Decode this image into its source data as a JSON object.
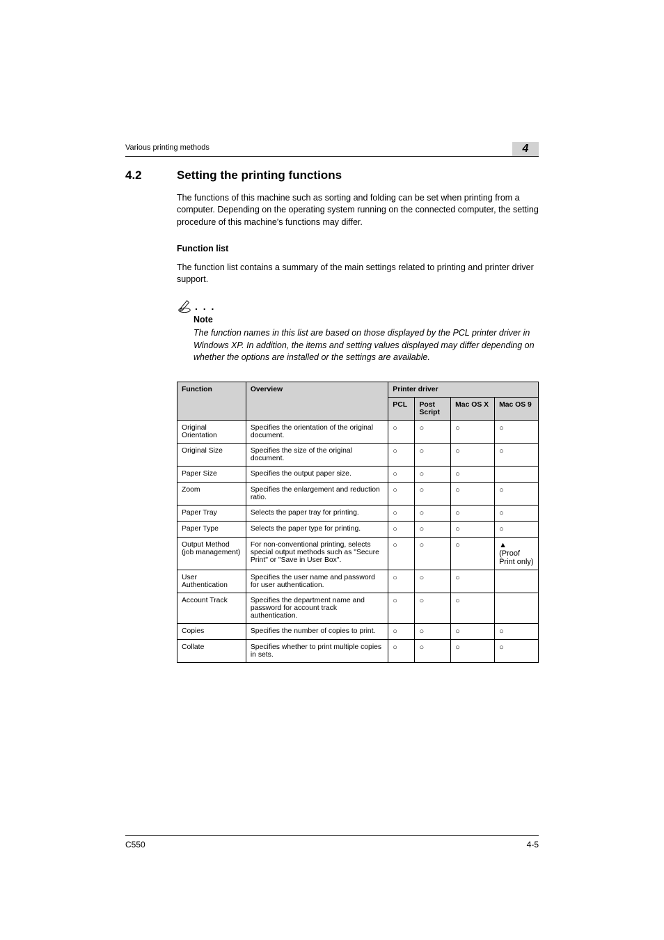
{
  "header": {
    "running": "Various printing methods",
    "chapter_number": "4"
  },
  "section": {
    "number": "4.2",
    "title": "Setting the printing functions",
    "intro": "The functions of this machine such as sorting and folding can be set when printing from a computer. Depending on the operating system running on the connected computer, the setting procedure of this machine's functions may differ."
  },
  "function_list": {
    "heading": "Function list",
    "intro": "The function list contains a summary of the main settings related to printing and printer driver support."
  },
  "note": {
    "label": "Note",
    "text": "The function names in this list are based on those displayed by the PCL printer driver in Windows XP. In addition, the items and setting values displayed may differ depending on whether the options are installed or the settings are available."
  },
  "table": {
    "head": {
      "function": "Function",
      "overview": "Overview",
      "driver": "Printer driver",
      "pcl": "PCL",
      "ps": "Post Script",
      "macx": "Mac OS X",
      "mac9": "Mac OS 9"
    },
    "mark": "○",
    "tri": "▲",
    "rows": [
      {
        "f": "Original Orientation",
        "o": "Specifies the orientation of the original document.",
        "pcl": "○",
        "ps": "○",
        "mx": "○",
        "m9": "○"
      },
      {
        "f": "Original Size",
        "o": "Specifies the size of the original document.",
        "pcl": "○",
        "ps": "○",
        "mx": "○",
        "m9": "○"
      },
      {
        "f": "Paper Size",
        "o": "Specifies the output paper size.",
        "pcl": "○",
        "ps": "○",
        "mx": "○",
        "m9": ""
      },
      {
        "f": "Zoom",
        "o": "Specifies the enlargement and reduction ratio.",
        "pcl": "○",
        "ps": "○",
        "mx": "○",
        "m9": "○"
      },
      {
        "f": "Paper Tray",
        "o": "Selects the paper tray for printing.",
        "pcl": "○",
        "ps": "○",
        "mx": "○",
        "m9": "○"
      },
      {
        "f": "Paper Type",
        "o": "Selects the paper type for printing.",
        "pcl": "○",
        "ps": "○",
        "mx": "○",
        "m9": "○"
      },
      {
        "f": "Output Method (job management)",
        "o": "For non-conventional printing, selects special output methods such as \"Secure Print\" or \"Save in User Box\".",
        "pcl": "○",
        "ps": "○",
        "mx": "○",
        "m9": "▲\n(Proof Print only)"
      },
      {
        "f": "User Authentication",
        "o": "Specifies the user name and password for user authentication.",
        "pcl": "○",
        "ps": "○",
        "mx": "○",
        "m9": ""
      },
      {
        "f": "Account Track",
        "o": "Specifies the department name and password for account track authentication.",
        "pcl": "○",
        "ps": "○",
        "mx": "○",
        "m9": ""
      },
      {
        "f": "Copies",
        "o": "Specifies the number of copies to print.",
        "pcl": "○",
        "ps": "○",
        "mx": "○",
        "m9": "○"
      },
      {
        "f": "Collate",
        "o": "Specifies whether to print multiple copies in sets.",
        "pcl": "○",
        "ps": "○",
        "mx": "○",
        "m9": "○"
      }
    ]
  },
  "footer": {
    "model": "C550",
    "page": "4-5"
  }
}
